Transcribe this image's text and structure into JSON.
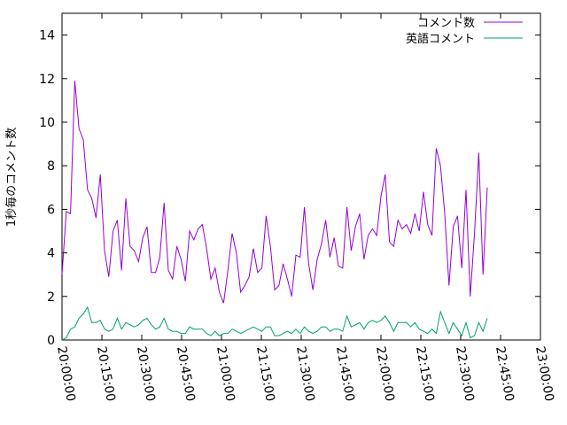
{
  "chart_data": {
    "type": "line",
    "title": "",
    "xlabel": "",
    "ylabel": "1秒毎のコメント数",
    "ylim": [
      0,
      15
    ],
    "xlim": [
      "20:00:00",
      "23:00:00"
    ],
    "x_tick_labels": [
      "20:00:00",
      "20:15:00",
      "20:30:00",
      "20:45:00",
      "21:00:00",
      "21:15:00",
      "21:30:00",
      "21:45:00",
      "22:00:00",
      "22:15:00",
      "22:30:00",
      "22:45:00",
      "23:00:00"
    ],
    "y_tick_labels": [
      "0",
      "2",
      "4",
      "6",
      "8",
      "10",
      "12",
      "14"
    ],
    "grid": false,
    "legend_position": "top-right",
    "sample_interval_minutes": 1.6,
    "series": [
      {
        "name": "コメント数",
        "color": "#9400d3",
        "start": "20:00:00",
        "values": [
          3.0,
          5.9,
          5.8,
          11.9,
          9.7,
          9.2,
          6.9,
          6.5,
          5.6,
          7.6,
          4.1,
          2.9,
          5.0,
          5.5,
          3.2,
          6.5,
          4.3,
          4.1,
          3.6,
          4.7,
          5.2,
          3.1,
          3.1,
          3.8,
          6.3,
          3.2,
          2.8,
          4.3,
          3.7,
          2.7,
          5.0,
          4.6,
          5.1,
          5.3,
          4.2,
          2.8,
          3.3,
          2.2,
          1.7,
          3.2,
          4.9,
          4.0,
          2.2,
          2.5,
          2.9,
          4.2,
          3.1,
          3.3,
          5.7,
          4.3,
          2.3,
          2.5,
          3.5,
          2.8,
          2.0,
          3.9,
          3.8,
          6.1,
          3.5,
          2.3,
          3.7,
          4.4,
          5.5,
          3.8,
          4.7,
          3.4,
          3.3,
          6.1,
          4.1,
          5.2,
          5.8,
          3.7,
          4.8,
          5.1,
          4.8,
          6.6,
          7.6,
          4.5,
          4.3,
          5.5,
          5.1,
          5.3,
          4.9,
          5.8,
          5.0,
          6.8,
          5.3,
          4.8,
          8.8,
          8.0,
          5.8,
          2.5,
          5.2,
          5.7,
          3.3,
          6.9,
          2.0,
          4.9,
          8.6,
          3.0,
          7.0
        ]
      },
      {
        "name": "英語コメント",
        "color": "#009e73",
        "start": "20:00:00",
        "values": [
          0.0,
          0.1,
          0.5,
          0.6,
          1.0,
          1.2,
          1.5,
          0.8,
          0.8,
          0.9,
          0.5,
          0.4,
          0.5,
          1.0,
          0.5,
          0.8,
          0.7,
          0.6,
          0.7,
          0.9,
          1.0,
          0.7,
          0.5,
          0.6,
          1.0,
          0.5,
          0.4,
          0.4,
          0.3,
          0.3,
          0.6,
          0.5,
          0.5,
          0.5,
          0.3,
          0.2,
          0.4,
          0.2,
          0.3,
          0.3,
          0.5,
          0.4,
          0.3,
          0.4,
          0.5,
          0.6,
          0.5,
          0.4,
          0.6,
          0.6,
          0.2,
          0.2,
          0.3,
          0.4,
          0.3,
          0.5,
          0.3,
          0.6,
          0.4,
          0.3,
          0.4,
          0.6,
          0.6,
          0.4,
          0.5,
          0.5,
          0.4,
          1.1,
          0.6,
          0.7,
          0.8,
          0.5,
          0.8,
          0.9,
          0.8,
          0.9,
          1.1,
          0.8,
          0.4,
          0.8,
          0.8,
          0.8,
          0.6,
          0.8,
          0.5,
          0.4,
          0.3,
          0.5,
          0.3,
          1.3,
          0.8,
          0.3,
          0.8,
          0.5,
          0.2,
          0.8,
          0.1,
          0.2,
          0.8,
          0.4,
          1.0
        ]
      }
    ]
  }
}
